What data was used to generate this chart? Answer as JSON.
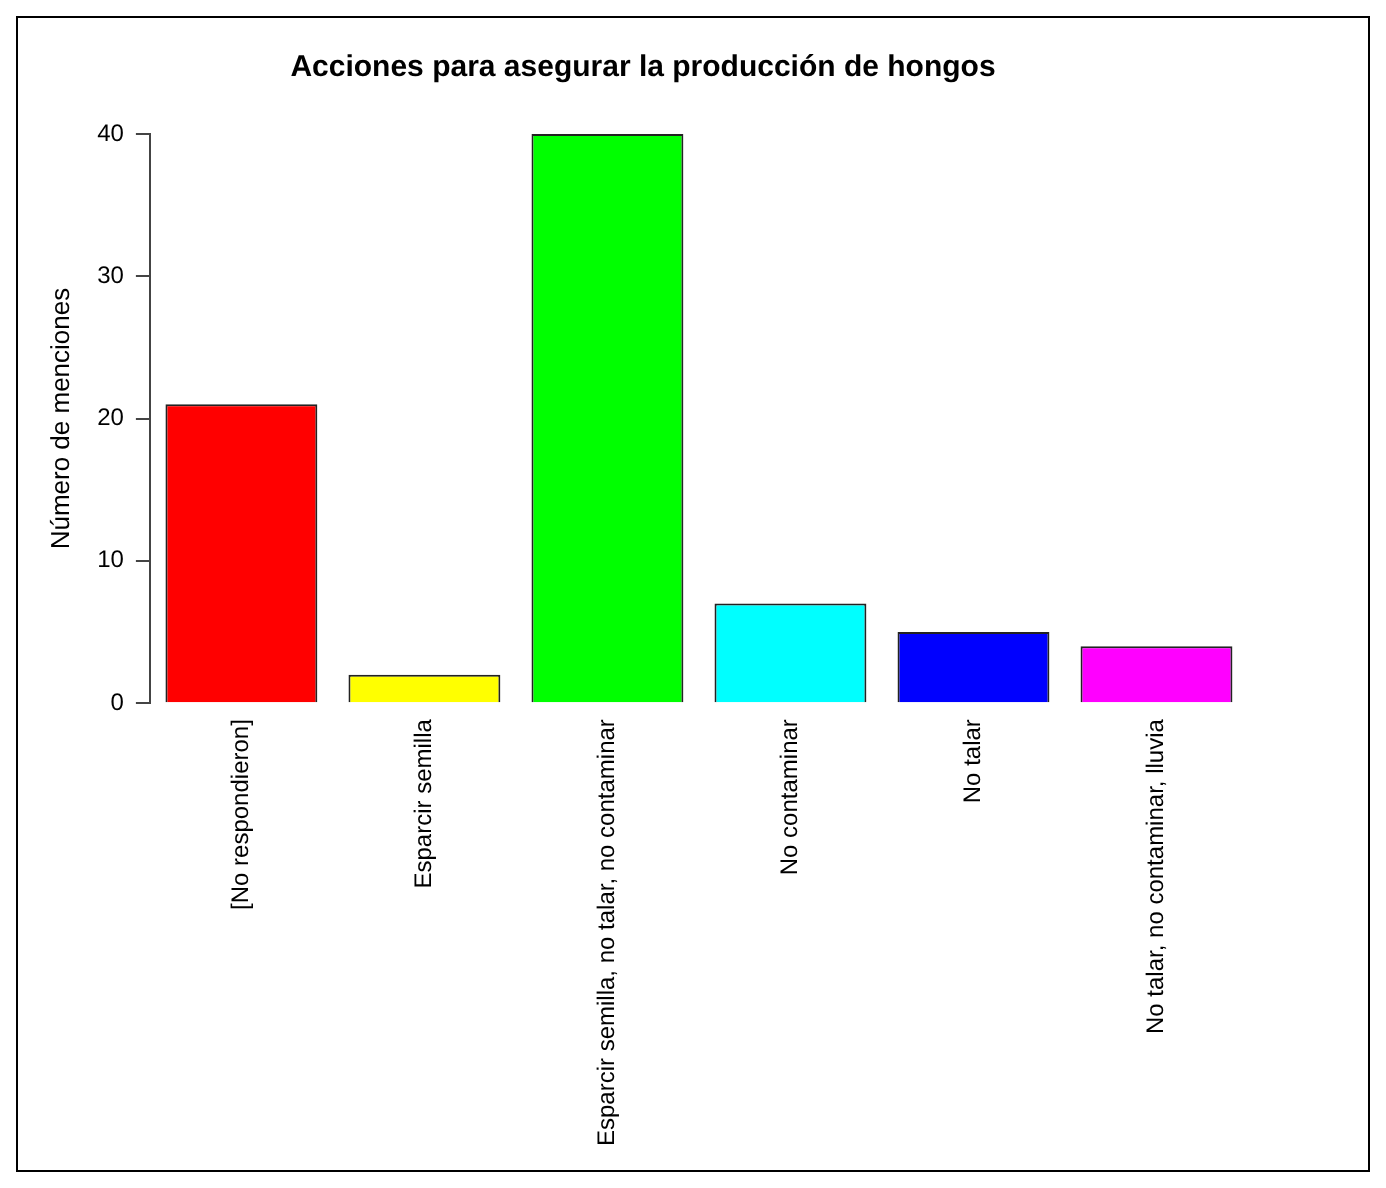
{
  "chart_data": {
    "type": "bar",
    "title": "Acciones para asegurar la producción de hongos",
    "ylabel": "Número de menciones",
    "categories": [
      "[No respondieron]",
      "Esparcir semilla",
      "Esparcir semilla, no talar, no contaminar",
      "No contaminar",
      "No talar",
      "No talar, no contaminar, lluvia"
    ],
    "values": [
      21,
      2,
      40,
      7,
      5,
      4
    ],
    "colors": [
      "#ff0000",
      "#ffff00",
      "#00ff00",
      "#00ffff",
      "#0000ff",
      "#ff00ff"
    ],
    "ylim": [
      0,
      40
    ],
    "yticks": [
      0,
      10,
      20,
      30,
      40
    ],
    "grid": false,
    "legend": false
  }
}
